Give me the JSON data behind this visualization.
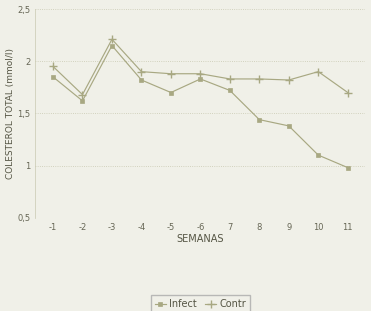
{
  "x_labels": [
    "-1",
    "-2",
    "-3",
    "-4",
    "-5",
    "-6",
    "7",
    "8",
    "9",
    "10",
    "11"
  ],
  "x_positions": [
    0,
    1,
    2,
    3,
    4,
    5,
    6,
    7,
    8,
    9,
    10
  ],
  "infect_y": [
    1.85,
    1.62,
    2.15,
    1.82,
    1.7,
    1.83,
    1.72,
    1.44,
    1.38,
    1.1,
    0.98
  ],
  "contr_y": [
    1.95,
    1.68,
    2.21,
    1.9,
    1.88,
    1.88,
    1.83,
    1.83,
    1.82,
    1.9,
    1.7
  ],
  "ylabel": "COLESTEROL TOTAL (mmol/l)",
  "xlabel": "SEMANAS",
  "ylim": [
    0.5,
    2.5
  ],
  "yticks": [
    0.5,
    1.0,
    1.5,
    2.0,
    2.5
  ],
  "ytick_labels": [
    "0,5",
    "1",
    "1,5",
    "2",
    "2,5"
  ],
  "line_color": "#a8a882",
  "legend_infect": "Infect",
  "legend_contr": "Contr",
  "bg_color": "#f0f0e8",
  "grid_color": "#c8c8b0",
  "axis_fontsize": 7,
  "tick_fontsize": 6,
  "legend_fontsize": 7
}
